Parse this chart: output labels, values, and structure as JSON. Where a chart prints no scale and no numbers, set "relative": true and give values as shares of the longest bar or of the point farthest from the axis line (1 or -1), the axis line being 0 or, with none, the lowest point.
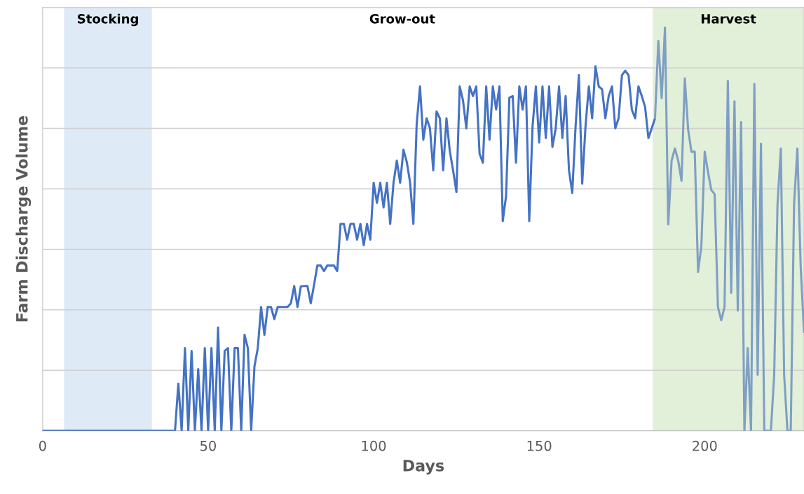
{
  "chart_data": {
    "type": "line",
    "xlabel": "Days",
    "ylabel": "Farm Discharge Volume",
    "relative": true,
    "xlim": [
      0,
      230
    ],
    "xticks": [
      0,
      50,
      100,
      150,
      200
    ],
    "grid": "y",
    "tick_labels": "x",
    "marker": "none",
    "line_style": "solid",
    "annotations": [
      "Grow-out"
    ],
    "bands": [
      {
        "axis": "x",
        "from": 6.5,
        "to": 33,
        "label": "Stocking",
        "color": "#deeaf6"
      },
      {
        "axis": "x",
        "from": 184.3,
        "to": 230,
        "label": "Harvest",
        "color": "#e2efd9"
      }
    ],
    "series": [
      {
        "color": "#4472c4",
        "x": [
          0,
          40,
          41,
          42,
          43,
          44,
          45,
          46,
          47,
          48,
          49,
          50,
          51,
          52,
          53,
          54,
          55,
          56,
          57,
          58,
          59,
          60,
          61,
          62,
          63,
          64,
          65,
          66,
          67,
          68,
          69,
          70,
          71,
          72,
          73,
          74,
          75,
          76,
          77,
          78,
          79,
          80,
          81,
          82,
          83,
          84,
          85,
          86,
          87,
          88,
          89,
          90,
          91,
          92,
          93,
          94,
          95,
          96,
          97,
          98,
          99,
          100,
          101,
          102,
          103,
          104,
          105,
          106,
          107,
          108,
          109,
          110,
          111,
          112,
          113,
          114,
          115,
          116,
          117,
          118,
          119,
          120,
          121,
          122,
          123,
          124,
          125,
          126,
          127,
          128,
          129,
          130,
          131,
          132,
          133,
          134,
          135,
          136,
          137,
          138,
          139,
          140,
          141,
          142,
          143,
          144,
          145,
          146,
          147,
          148,
          149,
          150,
          151,
          152,
          153,
          154,
          155,
          156,
          157,
          158,
          159,
          160,
          161,
          162,
          163,
          164,
          165,
          166,
          167,
          168,
          169,
          170,
          171,
          172,
          173,
          174,
          175,
          176,
          177,
          178,
          179,
          180,
          181,
          182,
          183,
          184,
          185
        ],
        "values": [
          0,
          0,
          0.117,
          0,
          0.205,
          0,
          0.198,
          0,
          0.153,
          0,
          0.205,
          0,
          0.205,
          0,
          0.256,
          0,
          0.198,
          0.205,
          0,
          0.205,
          0.205,
          0,
          0.238,
          0.205,
          0,
          0.16,
          0.205,
          0.307,
          0.238,
          0.307,
          0.307,
          0.277,
          0.307,
          0.307,
          0.307,
          0.307,
          0.316,
          0.359,
          0.307,
          0.358,
          0.359,
          0.359,
          0.316,
          0.362,
          0.41,
          0.41,
          0.396,
          0.41,
          0.41,
          0.41,
          0.396,
          0.513,
          0.513,
          0.474,
          0.513,
          0.513,
          0.474,
          0.513,
          0.46,
          0.513,
          0.474,
          0.615,
          0.565,
          0.615,
          0.554,
          0.615,
          0.513,
          0.615,
          0.67,
          0.615,
          0.697,
          0.667,
          0.616,
          0.513,
          0.761,
          0.854,
          0.722,
          0.775,
          0.751,
          0.646,
          0.792,
          0.775,
          0.646,
          0.775,
          0.694,
          0.646,
          0.592,
          0.854,
          0.819,
          0.75,
          0.854,
          0.83,
          0.854,
          0.687,
          0.665,
          0.854,
          0.722,
          0.854,
          0.797,
          0.854,
          0.52,
          0.582,
          0.826,
          0.83,
          0.665,
          0.854,
          0.797,
          0.854,
          0.52,
          0.755,
          0.854,
          0.715,
          0.854,
          0.726,
          0.854,
          0.704,
          0.75,
          0.854,
          0.726,
          0.83,
          0.646,
          0.59,
          0.755,
          0.882,
          0.613,
          0.755,
          0.854,
          0.775,
          0.904,
          0.854,
          0.847,
          0.775,
          0.83,
          0.854,
          0.75,
          0.775,
          0.882,
          0.893,
          0.882,
          0.796,
          0.775,
          0.854,
          0.83,
          0.803,
          0.726,
          0.75,
          0.775
        ]
      },
      {
        "color": "#7f9fc4",
        "x": [
          185,
          186,
          187,
          188,
          189,
          190,
          191,
          192,
          193,
          194,
          195,
          196,
          197,
          198,
          199,
          200,
          201,
          202,
          203,
          204,
          205,
          206,
          207,
          208,
          209,
          210,
          211,
          212,
          213,
          214,
          215,
          216,
          217,
          218,
          219,
          220,
          221,
          222,
          223,
          224,
          225,
          226,
          227,
          228,
          229,
          230
        ],
        "values": [
          0.775,
          0.967,
          0.825,
          1,
          0.512,
          0.67,
          0.7,
          0.67,
          0.62,
          0.874,
          0.747,
          0.692,
          0.692,
          0.394,
          0.459,
          0.692,
          0.642,
          0.597,
          0.587,
          0.307,
          0.274,
          0.307,
          0.868,
          0.342,
          0.817,
          0.298,
          0.766,
          0,
          0.205,
          0,
          0.86,
          0.139,
          0.712,
          0,
          0,
          0,
          0.139,
          0.561,
          0.7,
          0.139,
          0,
          0,
          0.561,
          0.7,
          0.407,
          0.245
        ]
      }
    ]
  }
}
